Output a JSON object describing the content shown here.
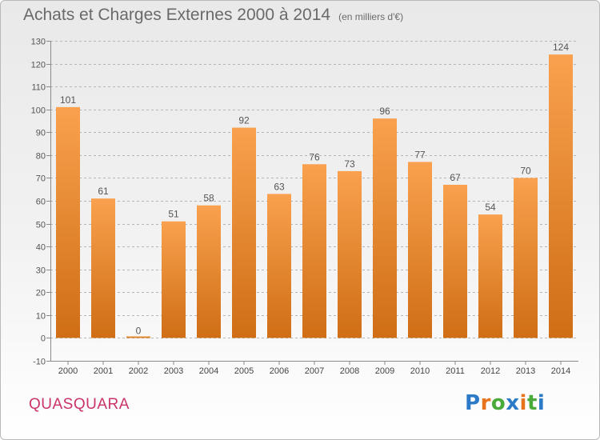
{
  "header": {
    "title": "Achats et Charges Externes 2000 à 2014",
    "unit": "(en milliers d'€)"
  },
  "footer": {
    "commune": "QUASQUARA",
    "brand": "Proxiti"
  },
  "colors": {
    "bar_light": "#f9a14e",
    "bar_dark": "#cf6e15",
    "commune": "#c9336a",
    "brand_letters": [
      "#2a7ac7",
      "#e8731f",
      "#4aaa3a",
      "#2a7ac7",
      "#e8731f",
      "#4aaa3a",
      "#2a7ac7"
    ]
  },
  "chart_data": {
    "type": "bar",
    "categories": [
      "2000",
      "2001",
      "2002",
      "2003",
      "2004",
      "2005",
      "2006",
      "2007",
      "2008",
      "2009",
      "2010",
      "2011",
      "2012",
      "2013",
      "2014"
    ],
    "values": [
      101,
      61,
      0,
      51,
      58,
      92,
      63,
      76,
      73,
      96,
      77,
      67,
      54,
      70,
      124
    ],
    "y_ticks": [
      "-10",
      "0",
      "10",
      "20",
      "30",
      "40",
      "50",
      "60",
      "70",
      "80",
      "90",
      "100",
      "110",
      "120",
      "130"
    ],
    "ylim": [
      -10,
      130
    ],
    "grid": "horizontal dashed",
    "legend": "none"
  }
}
